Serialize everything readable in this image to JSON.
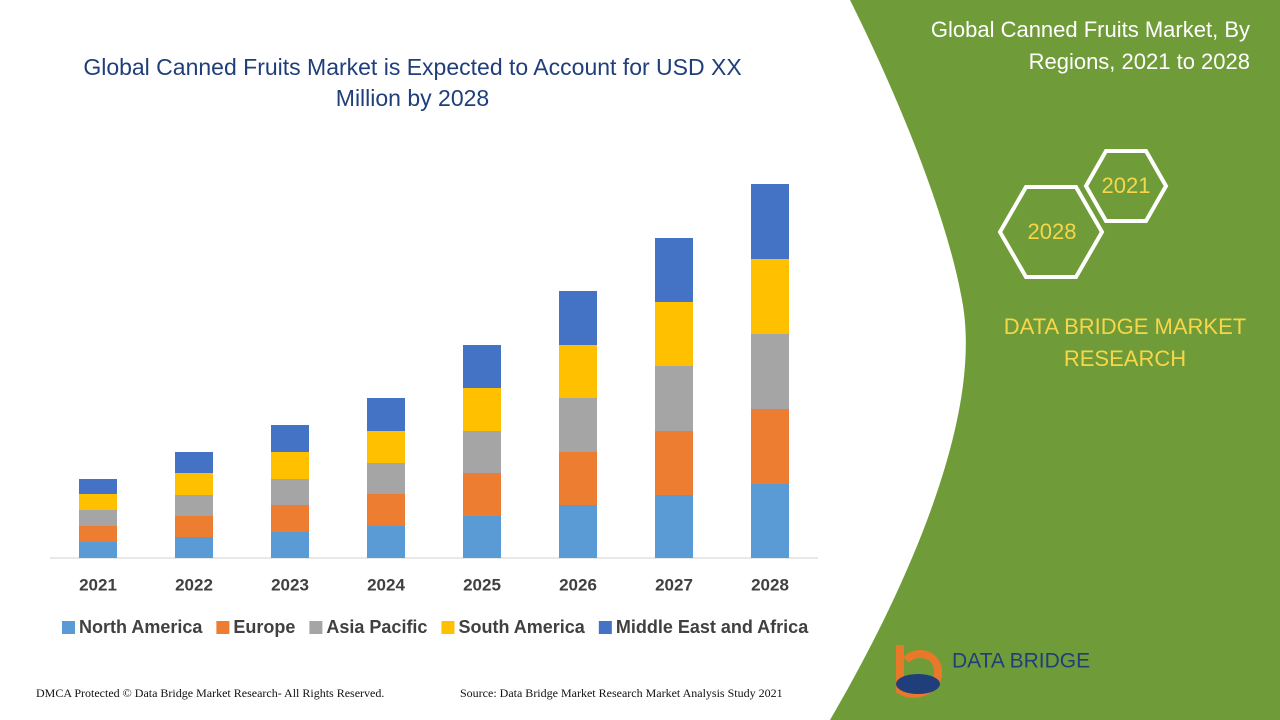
{
  "chart_data": {
    "type": "bar",
    "stacked": true,
    "title": "Global Canned Fruits Market is Expected to Account for USD XX Million by 2028",
    "categories": [
      "2021",
      "2022",
      "2023",
      "2024",
      "2025",
      "2026",
      "2027",
      "2028"
    ],
    "series": [
      {
        "name": "North America",
        "color": "#5b9bd5",
        "values": [
          16,
          21,
          26,
          32,
          42,
          53,
          63,
          74
        ]
      },
      {
        "name": "Europe",
        "color": "#ed7d31",
        "values": [
          16,
          21,
          27,
          32,
          43,
          53,
          64,
          75
        ]
      },
      {
        "name": "Asia Pacific",
        "color": "#a5a5a5",
        "values": [
          16,
          21,
          26,
          31,
          42,
          54,
          65,
          75
        ]
      },
      {
        "name": "South America",
        "color": "#ffc000",
        "values": [
          16,
          22,
          27,
          32,
          43,
          53,
          64,
          75
        ]
      },
      {
        "name": "Middle East and Africa",
        "color": "#4472c4",
        "values": [
          15,
          21,
          27,
          33,
          43,
          54,
          64,
          75
        ]
      }
    ],
    "ylim": [
      0,
      400
    ],
    "grid": false
  },
  "panel": {
    "title": "Global Canned Fruits Market, By Regions, 2021 to 2028",
    "hex_labels": [
      "2021",
      "2028"
    ],
    "brand": "DATA BRIDGE MARKET RESEARCH",
    "logo_text": "DATA BRIDGE"
  },
  "footer": {
    "copyright": "DMCA Protected © Data Bridge Market Research- All Rights Reserved.",
    "source": "Source: Data Bridge Market Research Market Analysis Study 2021"
  }
}
